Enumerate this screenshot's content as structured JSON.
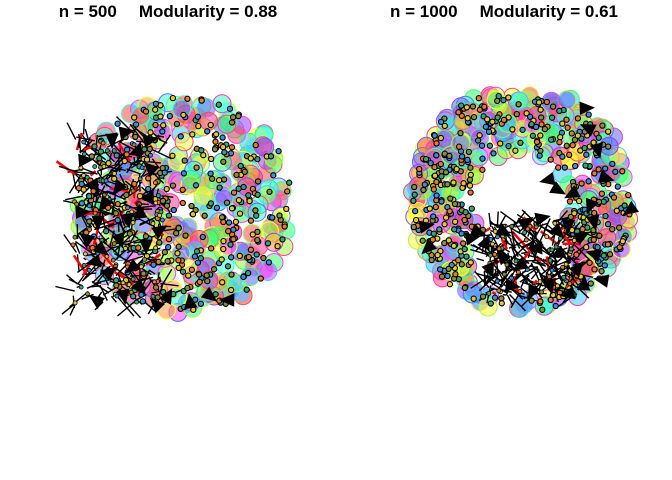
{
  "plots": [
    {
      "n_label": "n = 500",
      "modularity_label": "Modularity = 0.88",
      "n": 500,
      "modularity": 0.88
    },
    {
      "n_label": "n = 1000",
      "modularity_label": "Modularity = 0.61",
      "n": 1000,
      "modularity": 0.61
    }
  ],
  "colors": {
    "community_hues": [
      "#ff4d4d",
      "#ff9a3c",
      "#ffff3c",
      "#9aff3c",
      "#3cff6e",
      "#3cffd2",
      "#3cc8ff",
      "#5a6eff",
      "#a03cff",
      "#ff3cff",
      "#ff3c9a"
    ],
    "vertex_fill": [
      "#3b8fd9",
      "#e8c82e",
      "#36a67a",
      "#e87c2e",
      "#8a8f3a"
    ],
    "vertex_stroke": "#000000",
    "edge": "#000000",
    "arrow": "#000000",
    "highlight_edge": "#ff0000"
  }
}
